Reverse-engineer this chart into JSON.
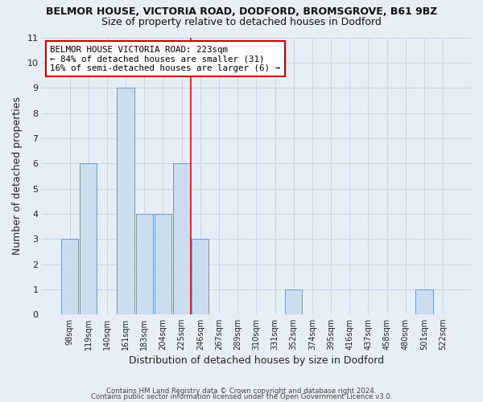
{
  "title": "BELMOR HOUSE, VICTORIA ROAD, DODFORD, BROMSGROVE, B61 9BZ",
  "subtitle": "Size of property relative to detached houses in Dodford",
  "xlabel": "Distribution of detached houses by size in Dodford",
  "ylabel": "Number of detached properties",
  "bar_labels": [
    "98sqm",
    "119sqm",
    "140sqm",
    "161sqm",
    "183sqm",
    "204sqm",
    "225sqm",
    "246sqm",
    "267sqm",
    "289sqm",
    "310sqm",
    "331sqm",
    "352sqm",
    "374sqm",
    "395sqm",
    "416sqm",
    "437sqm",
    "458sqm",
    "480sqm",
    "501sqm",
    "522sqm"
  ],
  "bar_values": [
    3,
    6,
    0,
    9,
    4,
    4,
    6,
    3,
    0,
    0,
    0,
    0,
    1,
    0,
    0,
    0,
    0,
    0,
    0,
    1,
    0
  ],
  "bar_color": "#ccddf0",
  "bar_edge_color": "#6699cc",
  "grid_color": "#c8d4e4",
  "background_color": "#e8eef5",
  "red_line_index": 6.5,
  "annotation_title": "BELMOR HOUSE VICTORIA ROAD: 223sqm",
  "annotation_line1": "← 84% of detached houses are smaller (31)",
  "annotation_line2": "16% of semi-detached houses are larger (6) →",
  "annotation_box_color": "#ffffff",
  "annotation_box_edge": "#cc0000",
  "footer1": "Contains HM Land Registry data © Crown copyright and database right 2024.",
  "footer2": "Contains public sector information licensed under the Open Government Licence v3.0.",
  "ylim": [
    0,
    11
  ],
  "yticks": [
    0,
    1,
    2,
    3,
    4,
    5,
    6,
    7,
    8,
    9,
    10,
    11
  ]
}
